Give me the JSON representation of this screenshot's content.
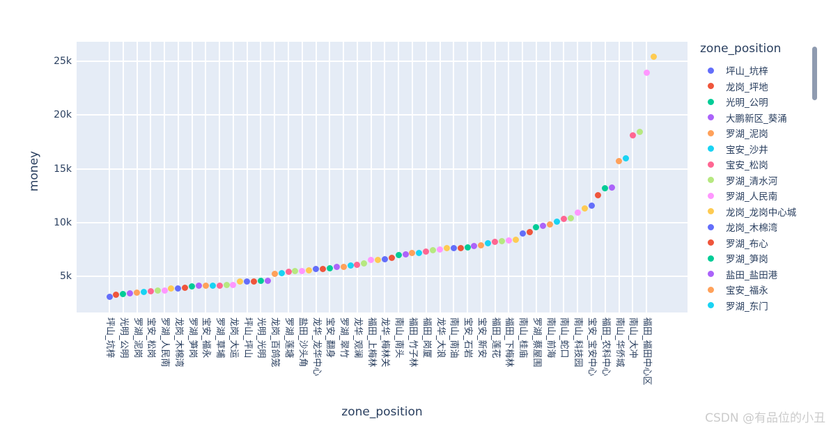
{
  "watermark": "CSDN @有品位的小丑",
  "chart_data": {
    "type": "scatter",
    "title": "",
    "xlabel": "zone_position",
    "ylabel": "money",
    "legend_title": "zone_position",
    "legend_position": "right",
    "grid": true,
    "plot_bg": "#E5ECF6",
    "grid_color": "#FFFFFF",
    "text_color": "#2A3F5F",
    "ylim": [
      1640,
      26810
    ],
    "y_ticks": [
      {
        "value": 5000,
        "label": "5k"
      },
      {
        "value": 10000,
        "label": "10k"
      },
      {
        "value": 15000,
        "label": "15k"
      },
      {
        "value": 20000,
        "label": "20k"
      },
      {
        "value": 25000,
        "label": "25k"
      }
    ],
    "palette": [
      "#636EFA",
      "#EF553B",
      "#00CC96",
      "#AB63FA",
      "#FFA15A",
      "#19D3F3",
      "#FF6692",
      "#B6E880",
      "#FF97FF",
      "#FECB52"
    ],
    "n_points": 80,
    "x_tick_every": 2,
    "x_tick_labels": [
      "坪山_坑梓",
      "光明_公明",
      "罗湖_泥岗",
      "宝安_松岗",
      "罗湖_人民南",
      "龙岗_木棉湾",
      "罗湖_笋岗",
      "宝安_福永",
      "罗湖_草埔",
      "龙岗_大运",
      "坪山_坪山",
      "光明_光明",
      "龙岗_百鸽笼",
      "罗湖_莲塘",
      "盐田_沙头角",
      "龙华_龙华中心",
      "宝安_翻身",
      "罗湖_翠竹",
      "龙华_观澜",
      "福田_上梅林",
      "龙华_梅林关",
      "南山_南头",
      "福田_竹子林",
      "福田_岗厦",
      "龙华_大浪",
      "南山_南油",
      "宝安_石岩",
      "宝安_新安",
      "福田_莲花",
      "福田_下梅林",
      "南山_桂庙",
      "罗湖_蔡屋围",
      "南山_前海",
      "南山_蛇口",
      "南山_科技园",
      "宝安_宝安中心",
      "福田_农科中心",
      "南山_华侨城",
      "南山_大冲",
      "福田_福田中心区"
    ],
    "values": [
      3100,
      3300,
      3350,
      3450,
      3500,
      3550,
      3600,
      3650,
      3700,
      3850,
      3900,
      3950,
      4050,
      4100,
      4100,
      4150,
      4150,
      4200,
      4200,
      4500,
      4550,
      4550,
      4600,
      4600,
      5250,
      5300,
      5450,
      5500,
      5500,
      5550,
      5700,
      5700,
      5750,
      5850,
      5900,
      6000,
      6050,
      6200,
      6550,
      6550,
      6600,
      6700,
      7000,
      7050,
      7150,
      7200,
      7300,
      7400,
      7500,
      7600,
      7600,
      7650,
      7700,
      7850,
      7900,
      8100,
      8200,
      8300,
      8350,
      8400,
      9000,
      9100,
      9550,
      9700,
      9850,
      10100,
      10350,
      10400,
      10950,
      11300,
      11600,
      12550,
      13200,
      13250,
      15700,
      16000,
      18100,
      18400,
      23900,
      25400
    ],
    "legend": [
      {
        "label": "坪山_坑梓",
        "color": "#636EFA"
      },
      {
        "label": "龙岗_坪地",
        "color": "#EF553B"
      },
      {
        "label": "光明_公明",
        "color": "#00CC96"
      },
      {
        "label": "大鹏新区_葵涌",
        "color": "#AB63FA"
      },
      {
        "label": "罗湖_泥岗",
        "color": "#FFA15A"
      },
      {
        "label": "宝安_沙井",
        "color": "#19D3F3"
      },
      {
        "label": "宝安_松岗",
        "color": "#FF6692"
      },
      {
        "label": "罗湖_清水河",
        "color": "#B6E880"
      },
      {
        "label": "罗湖_人民南",
        "color": "#FF97FF"
      },
      {
        "label": "龙岗_龙岗中心城",
        "color": "#FECB52"
      },
      {
        "label": "龙岗_木棉湾",
        "color": "#636EFA"
      },
      {
        "label": "罗湖_布心",
        "color": "#EF553B"
      },
      {
        "label": "罗湖_笋岗",
        "color": "#00CC96"
      },
      {
        "label": "盐田_盐田港",
        "color": "#AB63FA"
      },
      {
        "label": "宝安_福永",
        "color": "#FFA15A"
      },
      {
        "label": "罗湖_东门",
        "color": "#19D3F3"
      }
    ]
  }
}
